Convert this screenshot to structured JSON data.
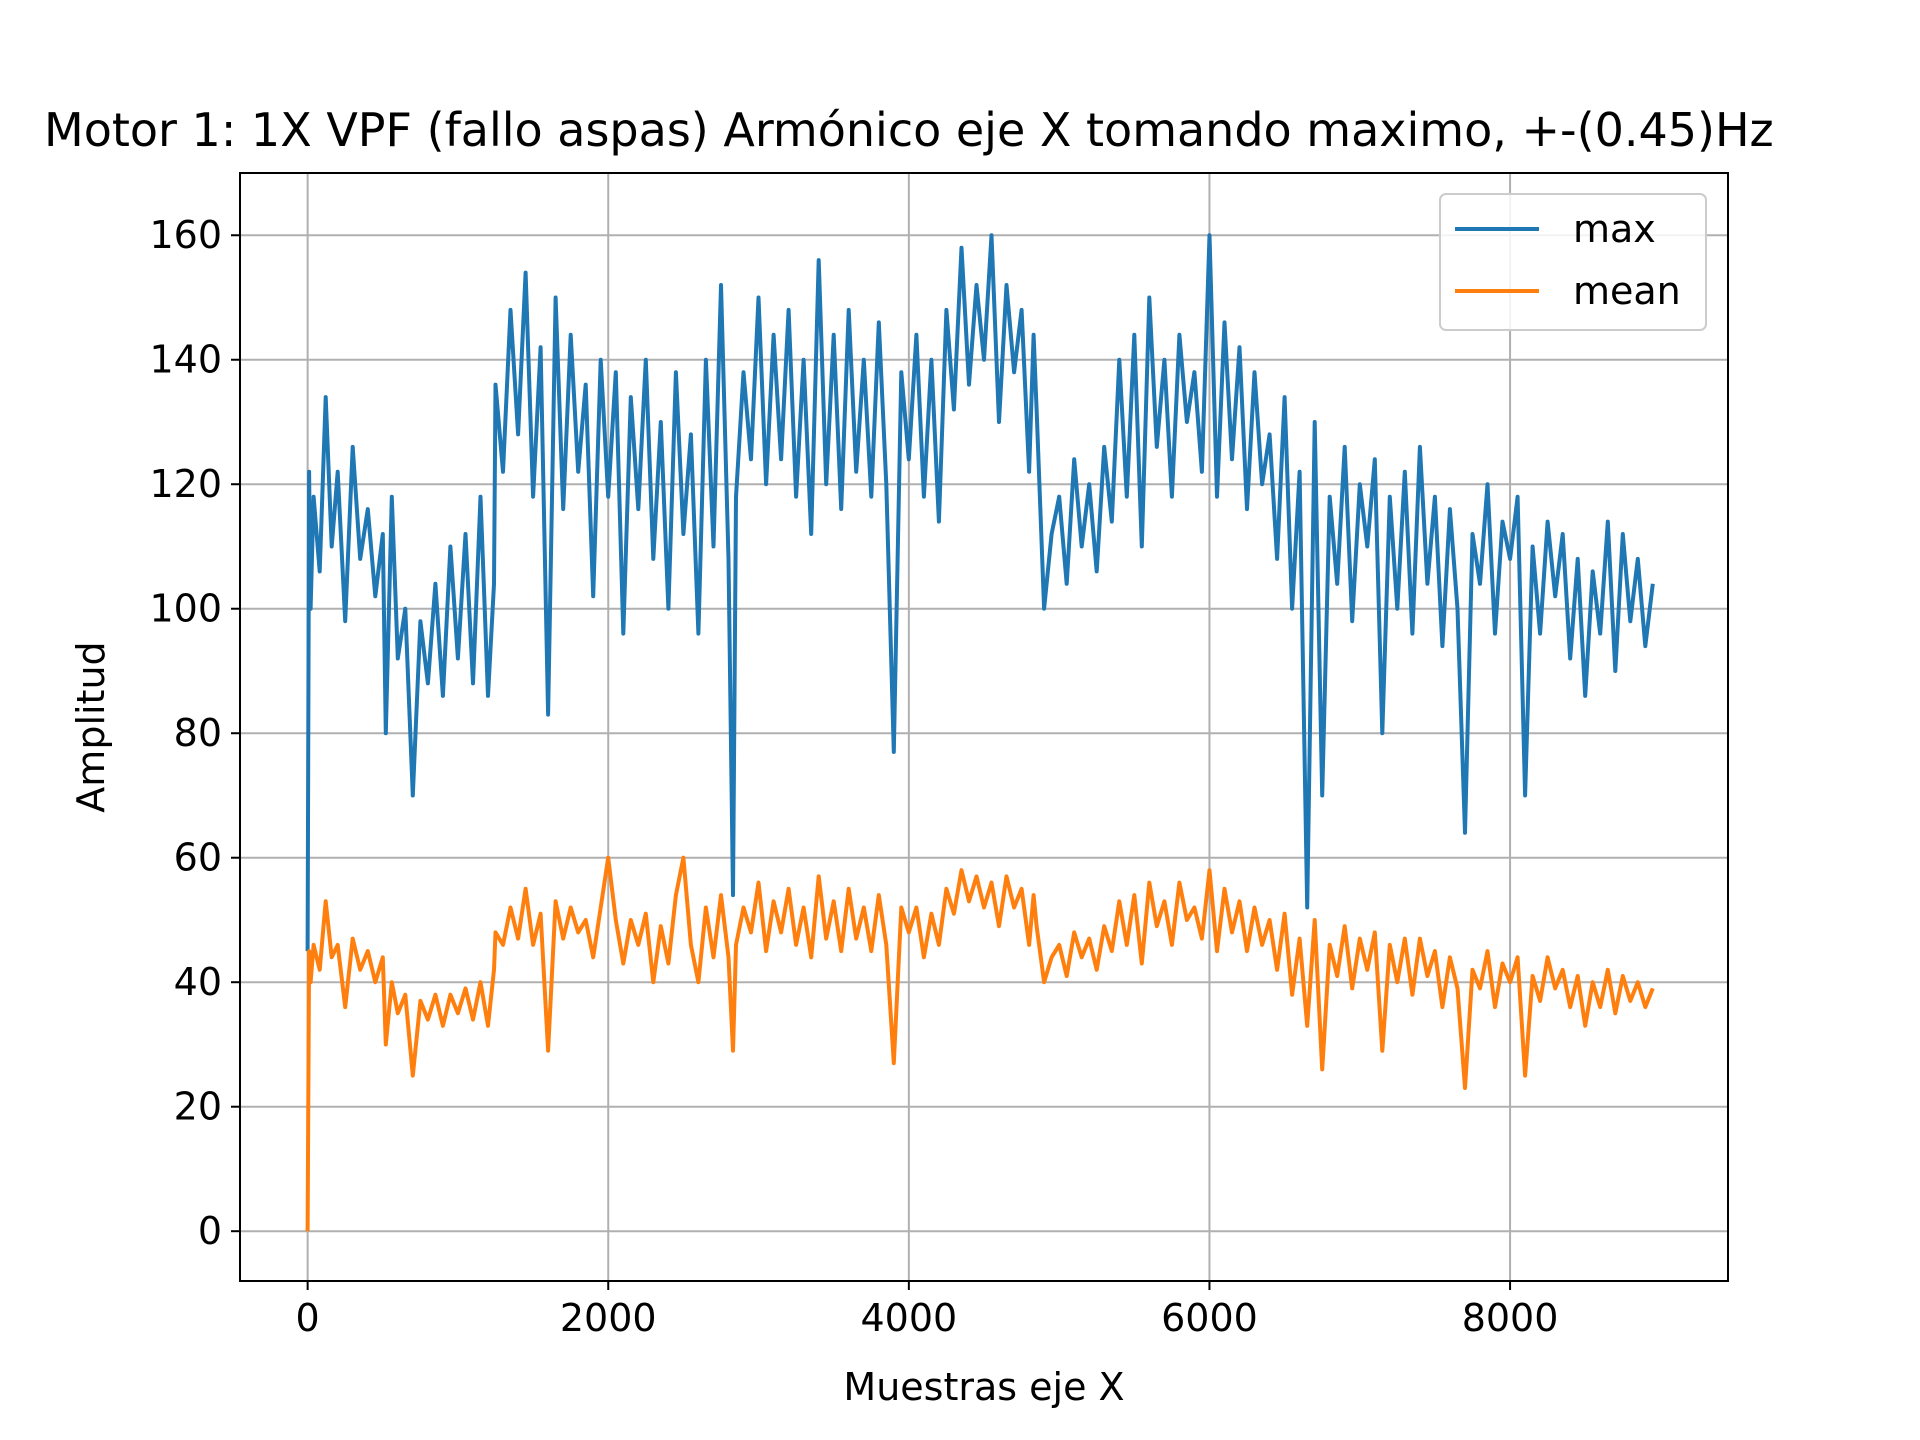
{
  "chart_data": {
    "type": "line",
    "title": "Motor 1: 1X VPF (fallo aspas) Armónico eje X tomando maximo, +-(0.45)Hz",
    "xlabel": "Muestras eje X",
    "ylabel": "Amplitud",
    "xlim": [
      -450,
      9450
    ],
    "ylim": [
      -8,
      170
    ],
    "xticks": [
      0,
      2000,
      4000,
      6000,
      8000
    ],
    "yticks": [
      0,
      20,
      40,
      60,
      80,
      100,
      120,
      140,
      160
    ],
    "xtick_labels": [
      "0",
      "2000",
      "4000",
      "6000",
      "8000"
    ],
    "ytick_labels": [
      "0",
      "20",
      "40",
      "60",
      "80",
      "100",
      "120",
      "140",
      "160"
    ],
    "grid": true,
    "legend_position": "top-right",
    "series": [
      {
        "name": "max",
        "color": "#1f77b4",
        "x": [
          0,
          10,
          20,
          40,
          80,
          120,
          160,
          200,
          250,
          300,
          350,
          400,
          450,
          500,
          520,
          560,
          600,
          650,
          700,
          750,
          800,
          850,
          900,
          950,
          1000,
          1050,
          1100,
          1150,
          1200,
          1240,
          1250,
          1300,
          1350,
          1400,
          1450,
          1500,
          1550,
          1600,
          1650,
          1700,
          1750,
          1800,
          1850,
          1900,
          1950,
          2000,
          2050,
          2100,
          2150,
          2200,
          2250,
          2300,
          2350,
          2400,
          2450,
          2500,
          2550,
          2600,
          2650,
          2700,
          2750,
          2800,
          2830,
          2850,
          2900,
          2950,
          3000,
          3050,
          3100,
          3150,
          3200,
          3250,
          3300,
          3350,
          3400,
          3450,
          3500,
          3550,
          3600,
          3650,
          3700,
          3750,
          3800,
          3850,
          3900,
          3950,
          4000,
          4050,
          4100,
          4150,
          4200,
          4250,
          4300,
          4350,
          4400,
          4450,
          4500,
          4550,
          4600,
          4650,
          4700,
          4750,
          4800,
          4830,
          4850,
          4900,
          4950,
          5000,
          5050,
          5100,
          5150,
          5200,
          5250,
          5300,
          5350,
          5400,
          5450,
          5500,
          5550,
          5600,
          5650,
          5700,
          5750,
          5800,
          5850,
          5900,
          5950,
          6000,
          6050,
          6100,
          6150,
          6200,
          6250,
          6300,
          6350,
          6400,
          6450,
          6500,
          6550,
          6600,
          6650,
          6700,
          6750,
          6800,
          6850,
          6900,
          6950,
          7000,
          7050,
          7100,
          7150,
          7200,
          7250,
          7300,
          7350,
          7400,
          7450,
          7500,
          7550,
          7600,
          7650,
          7700,
          7750,
          7800,
          7850,
          7900,
          7950,
          8000,
          8050,
          8100,
          8150,
          8200,
          8250,
          8300,
          8350,
          8400,
          8450,
          8500,
          8550,
          8600,
          8650,
          8700,
          8750,
          8800,
          8850,
          8900,
          8950
        ],
        "y": [
          45,
          122,
          100,
          118,
          106,
          134,
          110,
          122,
          98,
          126,
          108,
          116,
          102,
          112,
          80,
          118,
          92,
          100,
          70,
          98,
          88,
          104,
          86,
          110,
          92,
          112,
          88,
          118,
          86,
          104,
          136,
          122,
          148,
          128,
          154,
          118,
          142,
          83,
          150,
          116,
          144,
          122,
          136,
          102,
          140,
          118,
          138,
          96,
          134,
          116,
          140,
          108,
          130,
          100,
          138,
          112,
          128,
          96,
          140,
          110,
          152,
          108,
          54,
          118,
          138,
          124,
          150,
          120,
          144,
          124,
          148,
          118,
          140,
          112,
          156,
          120,
          144,
          116,
          148,
          122,
          140,
          118,
          146,
          120,
          77,
          138,
          124,
          144,
          118,
          140,
          114,
          148,
          132,
          158,
          136,
          152,
          140,
          160,
          130,
          152,
          138,
          148,
          122,
          144,
          132,
          100,
          112,
          118,
          104,
          124,
          110,
          120,
          106,
          126,
          114,
          140,
          118,
          144,
          110,
          150,
          126,
          140,
          118,
          144,
          130,
          138,
          122,
          160,
          118,
          146,
          124,
          142,
          116,
          138,
          120,
          128,
          108,
          134,
          100,
          122,
          52,
          130,
          70,
          118,
          104,
          126,
          98,
          120,
          110,
          124,
          80,
          118,
          100,
          122,
          96,
          126,
          104,
          118,
          94,
          116,
          100,
          64,
          112,
          104,
          120,
          96,
          114,
          108,
          118,
          70,
          110,
          96,
          114,
          102,
          112,
          92,
          108,
          86,
          106,
          96,
          114,
          90,
          112,
          98,
          108,
          94,
          104
        ]
      },
      {
        "name": "mean",
        "color": "#ff7f0e",
        "x": [
          0,
          10,
          20,
          40,
          80,
          120,
          160,
          200,
          250,
          300,
          350,
          400,
          450,
          500,
          520,
          560,
          600,
          650,
          700,
          750,
          800,
          850,
          900,
          950,
          1000,
          1050,
          1100,
          1150,
          1200,
          1240,
          1250,
          1300,
          1350,
          1400,
          1450,
          1500,
          1550,
          1600,
          1650,
          1700,
          1750,
          1800,
          1850,
          1900,
          1950,
          2000,
          2050,
          2100,
          2150,
          2200,
          2250,
          2300,
          2350,
          2400,
          2450,
          2500,
          2550,
          2600,
          2650,
          2700,
          2750,
          2800,
          2830,
          2850,
          2900,
          2950,
          3000,
          3050,
          3100,
          3150,
          3200,
          3250,
          3300,
          3350,
          3400,
          3450,
          3500,
          3550,
          3600,
          3650,
          3700,
          3750,
          3800,
          3850,
          3900,
          3950,
          4000,
          4050,
          4100,
          4150,
          4200,
          4250,
          4300,
          4350,
          4400,
          4450,
          4500,
          4550,
          4600,
          4650,
          4700,
          4750,
          4800,
          4830,
          4850,
          4900,
          4950,
          5000,
          5050,
          5100,
          5150,
          5200,
          5250,
          5300,
          5350,
          5400,
          5450,
          5500,
          5550,
          5600,
          5650,
          5700,
          5750,
          5800,
          5850,
          5900,
          5950,
          6000,
          6050,
          6100,
          6150,
          6200,
          6250,
          6300,
          6350,
          6400,
          6450,
          6500,
          6550,
          6600,
          6650,
          6700,
          6750,
          6800,
          6850,
          6900,
          6950,
          7000,
          7050,
          7100,
          7150,
          7200,
          7250,
          7300,
          7350,
          7400,
          7450,
          7500,
          7550,
          7600,
          7650,
          7700,
          7750,
          7800,
          7850,
          7900,
          7950,
          8000,
          8050,
          8100,
          8150,
          8200,
          8250,
          8300,
          8350,
          8400,
          8450,
          8500,
          8550,
          8600,
          8650,
          8700,
          8750,
          8800,
          8850,
          8900,
          8950
        ],
        "y": [
          0,
          45,
          40,
          46,
          42,
          53,
          44,
          46,
          36,
          47,
          42,
          45,
          40,
          44,
          30,
          40,
          35,
          38,
          25,
          37,
          34,
          38,
          33,
          38,
          35,
          39,
          34,
          40,
          33,
          42,
          48,
          46,
          52,
          47,
          55,
          46,
          51,
          29,
          53,
          47,
          52,
          48,
          50,
          44,
          52,
          60,
          50,
          43,
          50,
          46,
          51,
          40,
          49,
          43,
          54,
          60,
          46,
          40,
          52,
          44,
          54,
          44,
          29,
          46,
          52,
          48,
          56,
          45,
          53,
          48,
          55,
          46,
          52,
          44,
          57,
          47,
          53,
          45,
          55,
          47,
          52,
          45,
          54,
          46,
          27,
          52,
          48,
          52,
          44,
          51,
          46,
          55,
          51,
          58,
          53,
          57,
          52,
          56,
          49,
          57,
          52,
          55,
          46,
          54,
          49,
          40,
          44,
          46,
          41,
          48,
          44,
          47,
          42,
          49,
          45,
          53,
          46,
          54,
          43,
          56,
          49,
          53,
          46,
          56,
          50,
          52,
          47,
          58,
          45,
          55,
          48,
          53,
          45,
          52,
          46,
          50,
          42,
          51,
          38,
          47,
          33,
          50,
          26,
          46,
          41,
          49,
          39,
          47,
          42,
          48,
          29,
          46,
          40,
          47,
          38,
          47,
          41,
          45,
          36,
          44,
          39,
          23,
          42,
          39,
          45,
          36,
          43,
          40,
          44,
          25,
          41,
          37,
          44,
          39,
          42,
          36,
          41,
          33,
          40,
          36,
          42,
          35,
          41,
          37,
          40,
          36,
          39
        ]
      }
    ]
  }
}
